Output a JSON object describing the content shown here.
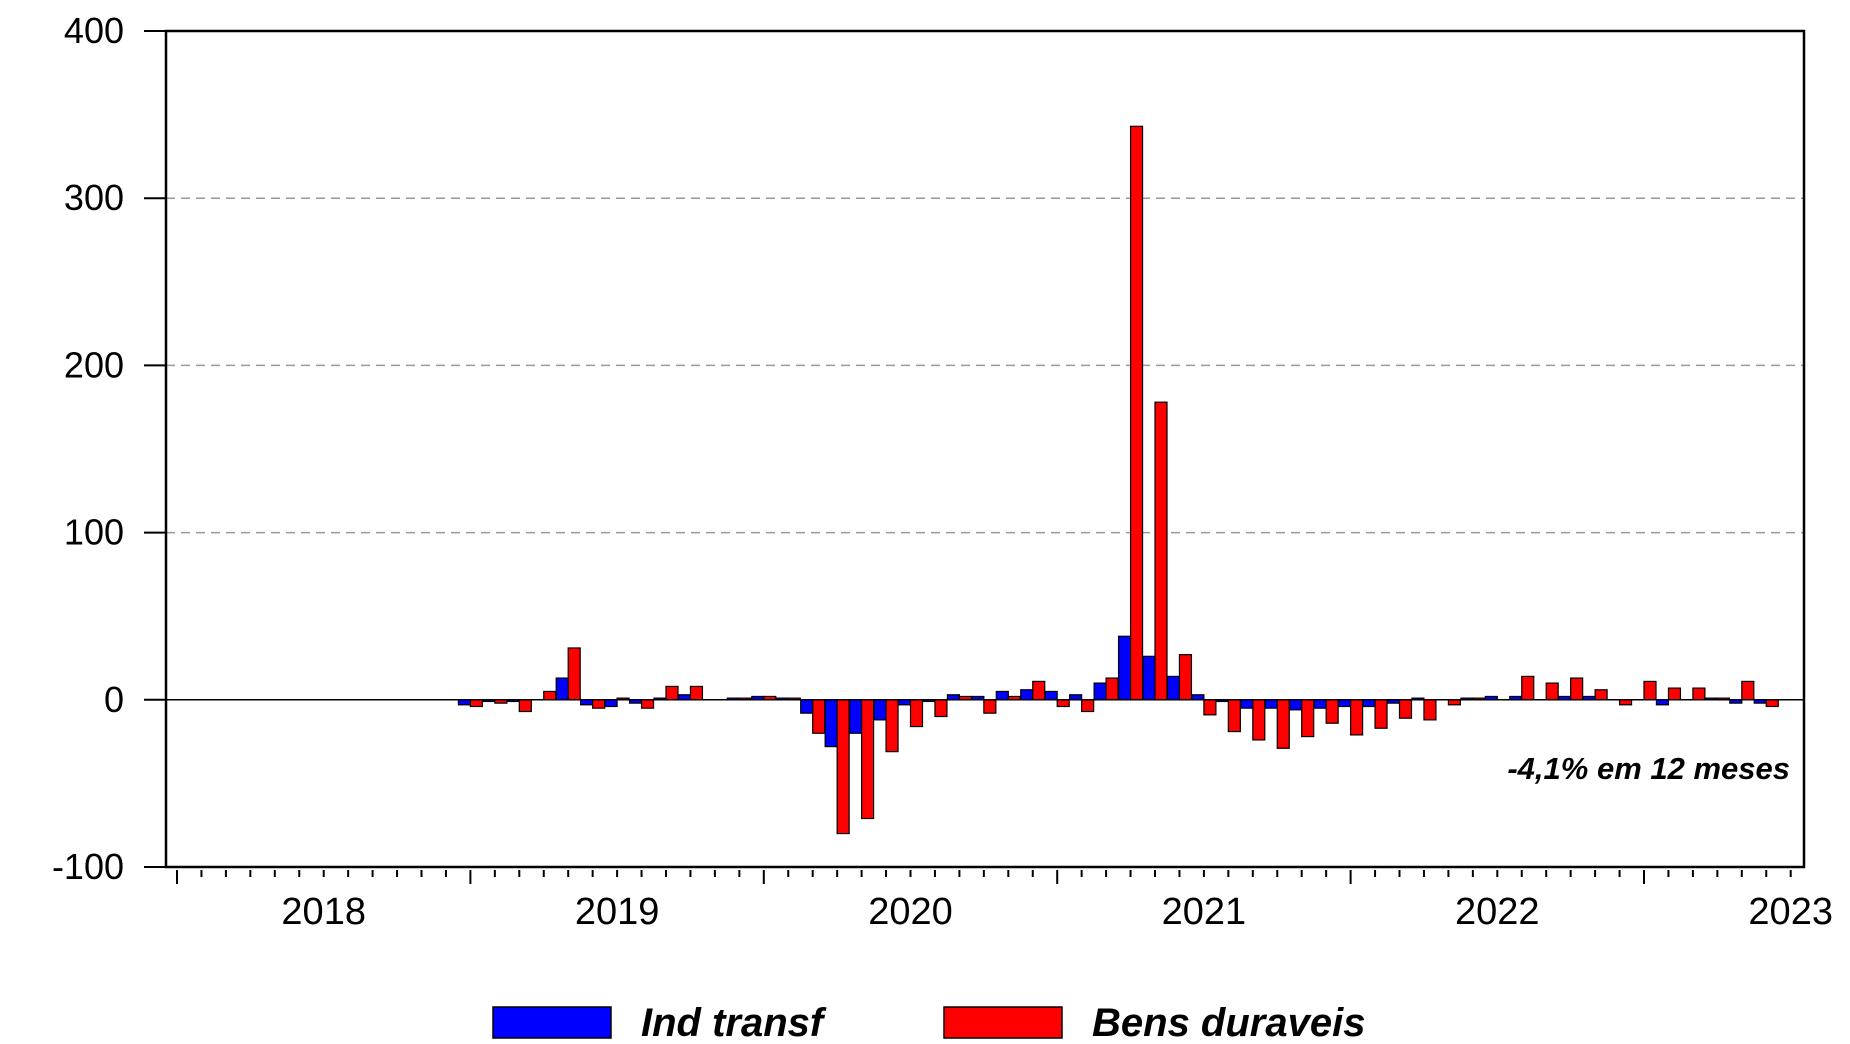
{
  "chart_data": {
    "type": "bar",
    "year_labels": [
      "2018",
      "2019",
      "2020",
      "2021",
      "2022",
      "2023"
    ],
    "annotation": "-4,1% em 12 meses",
    "ylim": [
      -100,
      400
    ],
    "yticks": [
      -100,
      0,
      100,
      200,
      300,
      400
    ],
    "grid": true,
    "legend": "bottom",
    "series": [
      {
        "name": "Ind transf",
        "color": "#0000ff",
        "values": [
          -3,
          -1,
          -1,
          0,
          13,
          -3,
          -4,
          -2,
          1,
          3,
          0,
          1,
          2,
          1,
          -8,
          -28,
          -20,
          -12,
          -3,
          -1,
          3,
          2,
          5,
          6,
          5,
          3,
          10,
          38,
          26,
          14,
          3,
          -1,
          -5,
          -5,
          -6,
          -5,
          -4,
          -4,
          -2,
          1,
          0,
          1,
          2,
          2,
          0,
          2,
          2,
          0,
          0,
          -3,
          0,
          1,
          -2,
          -2
        ]
      },
      {
        "name": "Bens duraveis",
        "color": "#ff0000",
        "values": [
          -4,
          -2,
          -7,
          5,
          31,
          -5,
          1,
          -5,
          8,
          8,
          0,
          1,
          2,
          1,
          -20,
          -80,
          -71,
          -31,
          -16,
          -10,
          2,
          -8,
          2,
          11,
          -4,
          -7,
          13,
          343,
          178,
          27,
          -9,
          -19,
          -24,
          -29,
          -22,
          -14,
          -21,
          -17,
          -11,
          -12,
          -3,
          1,
          0,
          14,
          10,
          13,
          6,
          -3,
          11,
          7,
          7,
          1,
          11,
          -4
        ]
      }
    ]
  }
}
